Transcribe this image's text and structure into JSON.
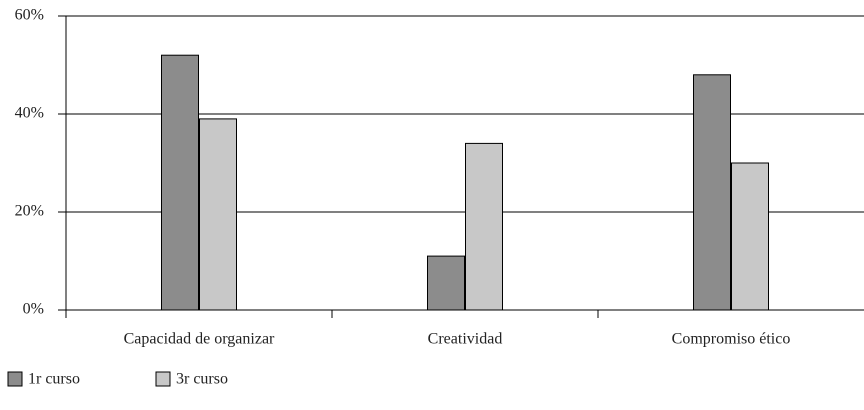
{
  "chart_data": {
    "type": "bar",
    "categories": [
      "Capacidad de organizar",
      "Creatividad",
      "Compromiso ético"
    ],
    "series": [
      {
        "name": "1r curso",
        "color": "#8c8c8c",
        "values": [
          52,
          11,
          48
        ]
      },
      {
        "name": "3r curso",
        "color": "#c8c8c8",
        "values": [
          39,
          34,
          30
        ]
      }
    ],
    "ylim": [
      0,
      60
    ],
    "yticks": [
      {
        "value": 0,
        "label": "0%"
      },
      {
        "value": 20,
        "label": "20%"
      },
      {
        "value": 40,
        "label": "40%"
      },
      {
        "value": 60,
        "label": "60%"
      }
    ],
    "grid": true,
    "legend": "bottom-left"
  }
}
